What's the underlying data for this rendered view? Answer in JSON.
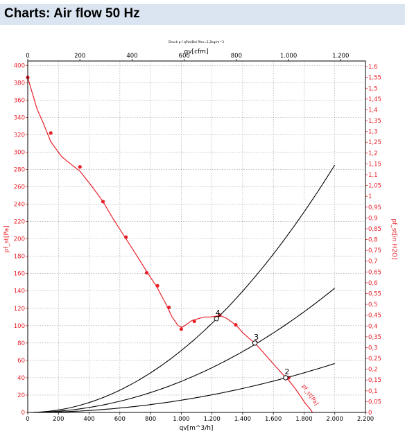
{
  "header": {
    "title": "Charts: Air flow 50 Hz"
  },
  "chart_data": {
    "type": "line",
    "subtitle": "Druck p f qP(a)Bei Rho=1,2kg/m^3",
    "x_bottom": {
      "label": "qv[m^3/h]",
      "range": [
        0,
        2200
      ],
      "ticks": [
        0,
        200,
        400,
        600,
        800,
        1000,
        1200,
        1400,
        1600,
        1800,
        2000,
        2200
      ],
      "tick_labels": [
        "0",
        "200",
        "400",
        "600",
        "800",
        "1.000",
        "1.200",
        "1.400",
        "1.600",
        "1.800",
        "2.000",
        "2.200"
      ]
    },
    "x_top": {
      "label": "qv[cfm]",
      "range": [
        0,
        1294.9
      ],
      "ticks": [
        0,
        200,
        400,
        600,
        800,
        1000,
        1200
      ],
      "tick_labels": [
        "0",
        "200",
        "400",
        "600",
        "800",
        "1.000",
        "1.200"
      ]
    },
    "y_left": {
      "label": "pf_st[Pa]",
      "range": [
        0,
        405
      ],
      "ticks": [
        0,
        20,
        40,
        60,
        80,
        100,
        120,
        140,
        160,
        180,
        200,
        220,
        240,
        260,
        280,
        300,
        320,
        340,
        360,
        380,
        400
      ],
      "tick_labels": [
        "0",
        "20",
        "40",
        "60",
        "80",
        "100",
        "120",
        "140",
        "160",
        "180",
        "200",
        "220",
        "240",
        "260",
        "280",
        "300",
        "320",
        "340",
        "360",
        "380",
        "400"
      ]
    },
    "y_right": {
      "label": "pf_st[in H2O]",
      "range": [
        0,
        1.626
      ],
      "ticks": [
        0,
        0.05,
        0.1,
        0.15,
        0.2,
        0.25,
        0.3,
        0.35,
        0.4,
        0.45,
        0.5,
        0.55,
        0.6,
        0.65,
        0.7,
        0.75,
        0.8,
        0.85,
        0.9,
        0.95,
        1,
        1.05,
        1.1,
        1.15,
        1.2,
        1.25,
        1.3,
        1.35,
        1.4,
        1.45,
        1.5,
        1.55,
        1.6
      ],
      "tick_labels": [
        "0",
        "0,05",
        "0,1",
        "0,15",
        "0,2",
        "0,25",
        "0,3",
        "0,35",
        "0,4",
        "0,45",
        "0,5",
        "0,55",
        "0,6",
        "0,65",
        "0,7",
        "0,75",
        "0,8",
        "0,85",
        "0,9",
        "0,95",
        "1",
        "1,05",
        "1,1",
        "1,15",
        "1,2",
        "1,25",
        "1,3",
        "1,35",
        "1,4",
        "1,45",
        "1,5",
        "1,55",
        "1,6"
      ]
    },
    "grid": true,
    "series": [
      {
        "role": "fan_curve",
        "color": "#e8202a",
        "curve": [
          [
            0,
            386
          ],
          [
            30,
            368
          ],
          [
            60,
            350
          ],
          [
            100,
            334
          ],
          [
            150,
            312
          ],
          [
            220,
            295
          ],
          [
            260,
            289
          ],
          [
            340,
            278
          ],
          [
            420,
            260
          ],
          [
            490,
            243
          ],
          [
            560,
            222
          ],
          [
            640,
            200
          ],
          [
            720,
            178
          ],
          [
            780,
            161
          ],
          [
            840,
            145
          ],
          [
            900,
            125
          ],
          [
            940,
            110
          ],
          [
            980,
            100
          ],
          [
            1005,
            98
          ],
          [
            1030,
            101
          ],
          [
            1070,
            106
          ],
          [
            1110,
            108
          ],
          [
            1150,
            110
          ],
          [
            1190,
            110
          ],
          [
            1230,
            111
          ],
          [
            1260,
            111
          ],
          [
            1290,
            109
          ],
          [
            1330,
            104
          ],
          [
            1360,
            100
          ],
          [
            1400,
            92
          ],
          [
            1450,
            84
          ],
          [
            1480,
            80
          ],
          [
            1520,
            72
          ],
          [
            1570,
            62
          ],
          [
            1620,
            52
          ],
          [
            1660,
            44
          ],
          [
            1700,
            37
          ],
          [
            1740,
            28
          ],
          [
            1780,
            18
          ],
          [
            1810,
            10
          ],
          [
            1835,
            5
          ],
          [
            1855,
            0
          ]
        ],
        "markers": [
          [
            0,
            386
          ],
          [
            150,
            322
          ],
          [
            340,
            283
          ],
          [
            490,
            243
          ],
          [
            640,
            202
          ],
          [
            775,
            161
          ],
          [
            845,
            146
          ],
          [
            920,
            121
          ],
          [
            1000,
            96
          ],
          [
            1085,
            105
          ],
          [
            1250,
            112
          ],
          [
            1355,
            101
          ],
          [
            1485,
            81
          ],
          [
            1700,
            40
          ]
        ]
      },
      {
        "role": "system_curve",
        "label_point": "4",
        "color": "#000000",
        "coefficient": 7.13e-05
      },
      {
        "role": "system_curve",
        "label_point": "3",
        "color": "#000000",
        "coefficient": 3.58e-05
      },
      {
        "role": "system_curve",
        "label_point": "2",
        "color": "#000000",
        "coefficient": 1.41e-05
      }
    ],
    "operating_points": [
      {
        "label": "4",
        "x": 1230,
        "y": 108
      },
      {
        "label": "3",
        "x": 1480,
        "y": 80
      },
      {
        "label": "2",
        "x": 1680,
        "y": 40
      }
    ],
    "curve_label": "pf_st[Pa]"
  }
}
